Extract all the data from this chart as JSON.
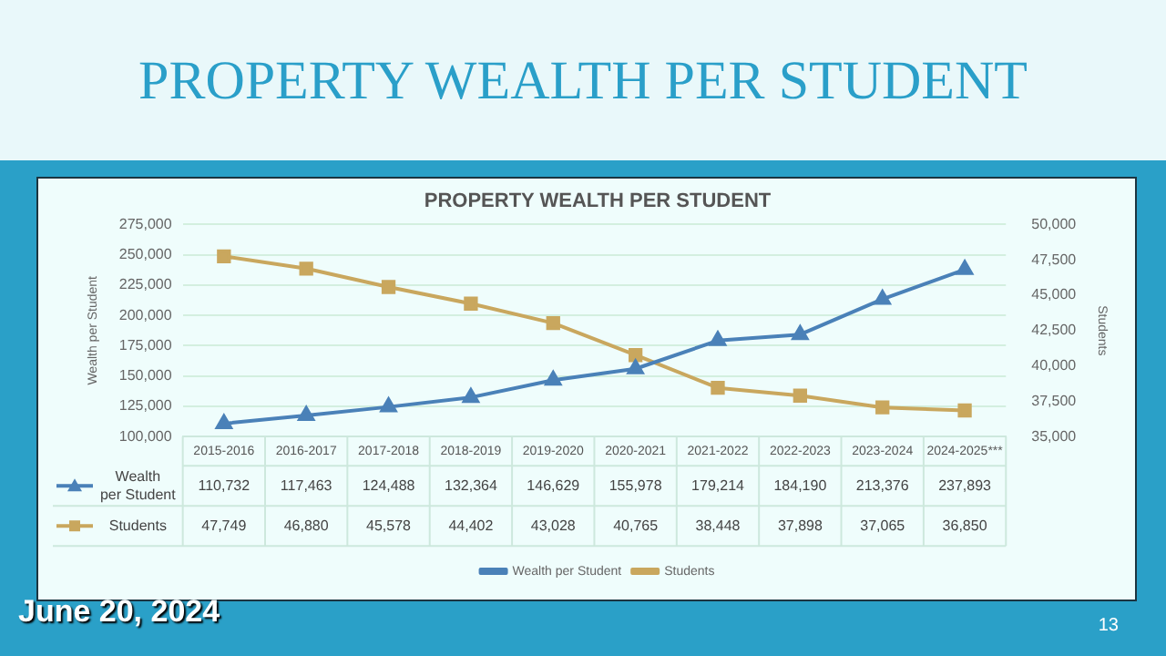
{
  "chart_data": {
    "type": "line",
    "title": "PROPERTY WEALTH PER STUDENT",
    "ylabel": "Wealth per Student",
    "y2label": "Students",
    "categories": [
      "2015-2016",
      "2016-2017",
      "2017-2018",
      "2018-2019",
      "2019-2020",
      "2020-2021",
      "2021-2022",
      "2022-2023",
      "2023-2024",
      "2024-2025***"
    ],
    "series": [
      {
        "name": "Wealth per Student",
        "color": "#4a81b8",
        "marker": "triangle",
        "values": [
          110732,
          117463,
          124488,
          132364,
          146629,
          155978,
          179214,
          184190,
          213376,
          237893
        ],
        "value_labels": [
          "110,732",
          "117,463",
          "124,488",
          "132,364",
          "146,629",
          "155,978",
          "179,214",
          "184,190",
          "213,376",
          "237,893"
        ]
      },
      {
        "name": "Students",
        "color": "#c9a75e",
        "marker": "square",
        "axis": "y2",
        "values": [
          47749,
          46880,
          45578,
          44402,
          43028,
          40765,
          38448,
          37898,
          37065,
          36850
        ],
        "value_labels": [
          "47,749",
          "46,880",
          "45,578",
          "44,402",
          "43,028",
          "40,765",
          "38,448",
          "37,898",
          "37,065",
          "36,850"
        ]
      }
    ],
    "ylim": [
      100000,
      275000
    ],
    "yticks": [
      {
        "value": 100000,
        "label": "100,000"
      },
      {
        "value": 125000,
        "label": "125,000"
      },
      {
        "value": 150000,
        "label": "150,000"
      },
      {
        "value": 175000,
        "label": "175,000"
      },
      {
        "value": 200000,
        "label": "200,000"
      },
      {
        "value": 225000,
        "label": "225,000"
      },
      {
        "value": 250000,
        "label": "250,000"
      },
      {
        "value": 275000,
        "label": "275,000"
      }
    ],
    "y2lim": [
      35000,
      50000
    ],
    "y2ticks": [
      {
        "value": 35000,
        "label": "35,000"
      },
      {
        "value": 37500,
        "label": "37,500"
      },
      {
        "value": 40000,
        "label": "40,000"
      },
      {
        "value": 42500,
        "label": "42,500"
      },
      {
        "value": 45000,
        "label": "45,000"
      },
      {
        "value": 47500,
        "label": "47,500"
      },
      {
        "value": 50000,
        "label": "50,000"
      }
    ],
    "grid": "y",
    "legend": "bottom",
    "line_style": "solid",
    "annotations": [
      "PROPERTY WEALTH PER STUDENT",
      "June 20, 2024",
      "13"
    ]
  }
}
